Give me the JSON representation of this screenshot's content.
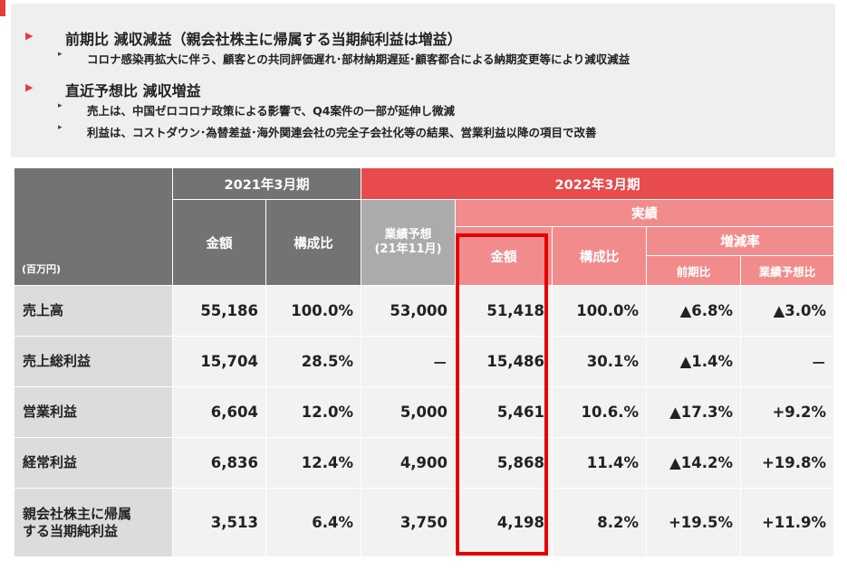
{
  "summary": {
    "heading1": "前期比 減収減益（親会社株主に帰属する当期純利益は増益）",
    "heading1_bullets": [
      "コロナ感染再拡大に伴う、顧客との共同評価遅れ･部材納期遅延･顧客都合による納期変更等により減収減益"
    ],
    "heading2": "直近予想比 減収増益",
    "heading2_bullets": [
      "売上は、中国ゼロコロナ政策による影響で、Q4案件の一部が延伸し微減",
      "利益は、コストダウン･為替差益･海外関連会社の完全子会社化等の結果、営業利益以降の項目で改善"
    ],
    "triangle": "▶",
    "bullet": "▸"
  },
  "table": {
    "unit": "(百万円)",
    "fy2021": "2021年3月期",
    "fy2022": "2022年3月期",
    "actual": "実績",
    "amount": "金額",
    "ratio": "構成比",
    "forecast_line1": "業績予想",
    "forecast_line2": "(21年11月)",
    "change_rate": "増減率",
    "yoy": "前期比",
    "vs_forecast": "業績予想比",
    "rows": [
      {
        "label": "売上高",
        "label2": "",
        "v2021": "55,186",
        "r2021": "100.0%",
        "fc": "53,000",
        "v2022": "51,418",
        "r2022": "100.0%",
        "yoy": "▲6.8%",
        "vsfc": "▲3.0%"
      },
      {
        "label": "売上総利益",
        "label2": "",
        "v2021": "15,704",
        "r2021": "28.5%",
        "fc": "－",
        "v2022": "15,486",
        "r2022": "30.1%",
        "yoy": "▲1.4%",
        "vsfc": "－"
      },
      {
        "label": "営業利益",
        "label2": "",
        "v2021": "6,604",
        "r2021": "12.0%",
        "fc": "5,000",
        "v2022": "5,461",
        "r2022": "10.6.%",
        "yoy": "▲17.3%",
        "vsfc": "+9.2%"
      },
      {
        "label": "経常利益",
        "label2": "",
        "v2021": "6,836",
        "r2021": "12.4%",
        "fc": "4,900",
        "v2022": "5,868",
        "r2022": "11.4%",
        "yoy": "▲14.2%",
        "vsfc": "+19.8%"
      },
      {
        "label": "親会社株主に帰属",
        "label2": "する当期純利益",
        "v2021": "3,513",
        "r2021": "6.4%",
        "fc": "3,750",
        "v2022": "4,198",
        "r2022": "8.2%",
        "yoy": "+19.5%",
        "vsfc": "+11.9%"
      }
    ]
  },
  "colors": {
    "accent": "#e63c3c",
    "header_gray": "#737373",
    "header_red": "#e84b4b",
    "header_pink": "#f28c8c",
    "highlight_border": "#e60000"
  }
}
